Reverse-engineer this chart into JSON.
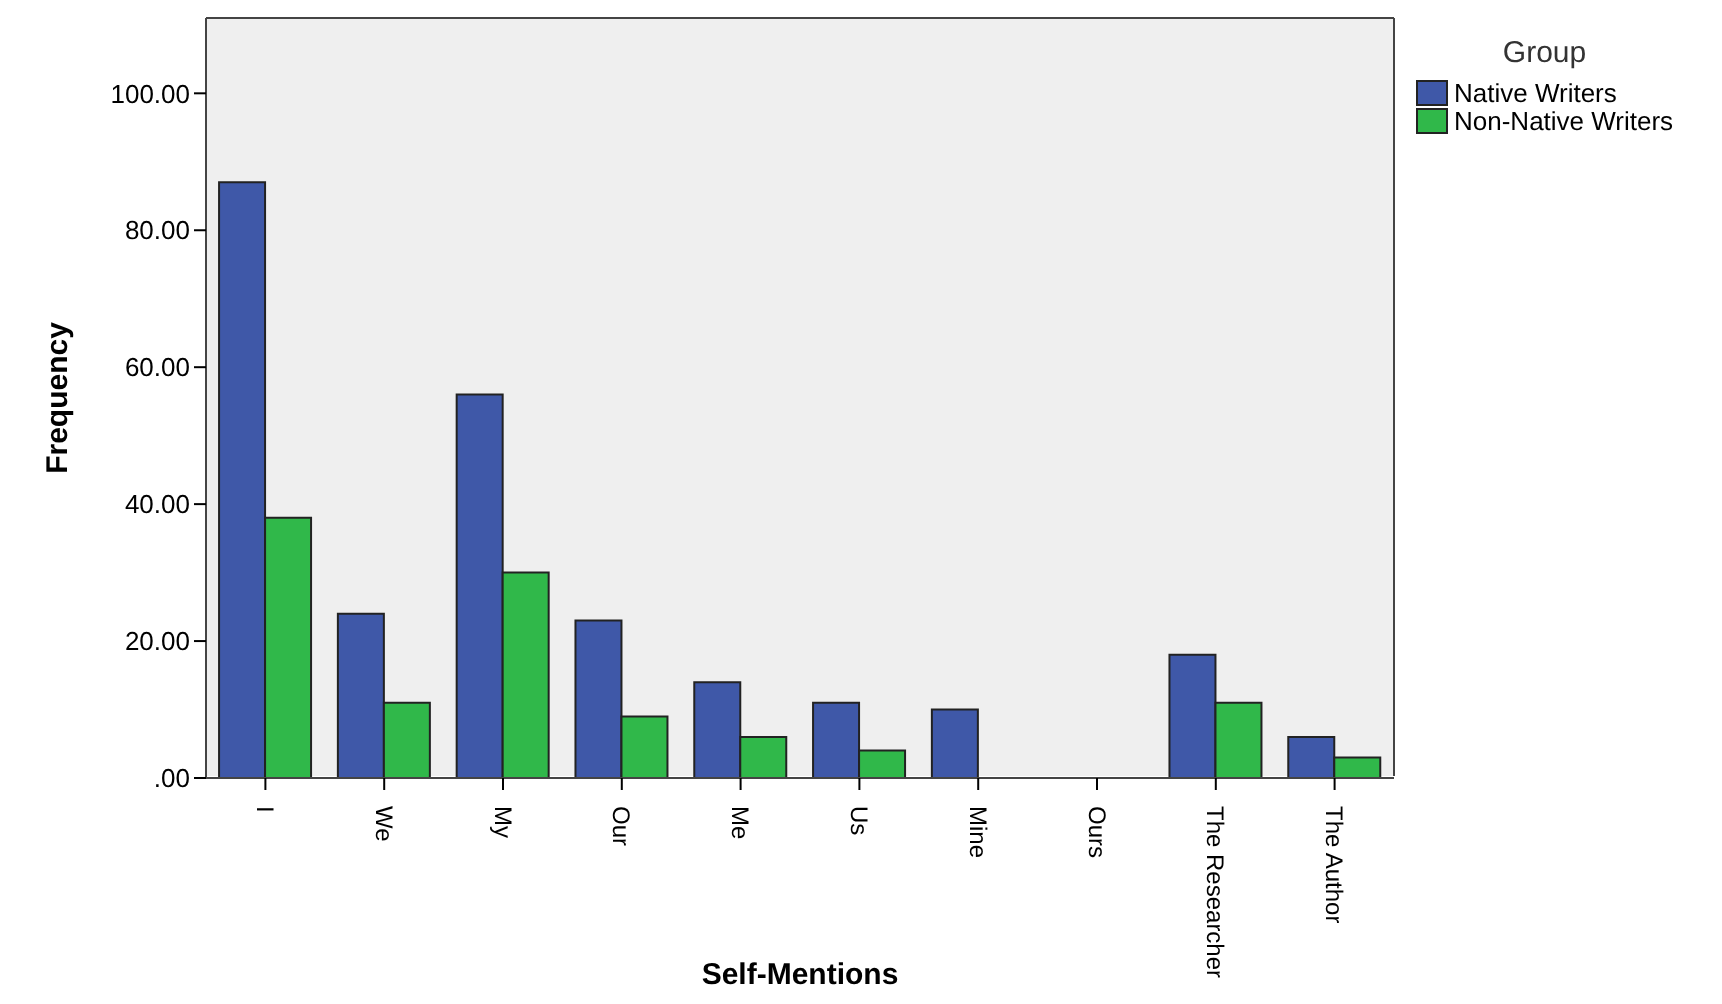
{
  "chart_data": {
    "type": "bar",
    "xlabel": "Self-Mentions",
    "ylabel": "Frequency",
    "legend_title": "Group",
    "categories": [
      "I",
      "We",
      "My",
      "Our",
      "Me",
      "Us",
      "Mine",
      "Ours",
      "The Researcher",
      "The Author"
    ],
    "series": [
      {
        "name": "Native Writers",
        "color": "#3f58a8",
        "values": [
          87,
          24,
          56,
          23,
          14,
          11,
          10,
          0,
          18,
          6
        ]
      },
      {
        "name": "Non-Native Writers",
        "color": "#30b84a",
        "values": [
          38,
          11,
          30,
          9,
          6,
          4,
          0,
          0,
          11,
          3
        ]
      }
    ],
    "ylim": [
      0,
      111
    ],
    "yticks": [
      {
        "value": 0,
        "label": ".00"
      },
      {
        "value": 20,
        "label": "20.00"
      },
      {
        "value": 40,
        "label": "40.00"
      },
      {
        "value": 60,
        "label": "60.00"
      },
      {
        "value": 80,
        "label": "80.00"
      },
      {
        "value": 100,
        "label": "100.00"
      }
    ],
    "grid": false,
    "legend": "top right"
  }
}
